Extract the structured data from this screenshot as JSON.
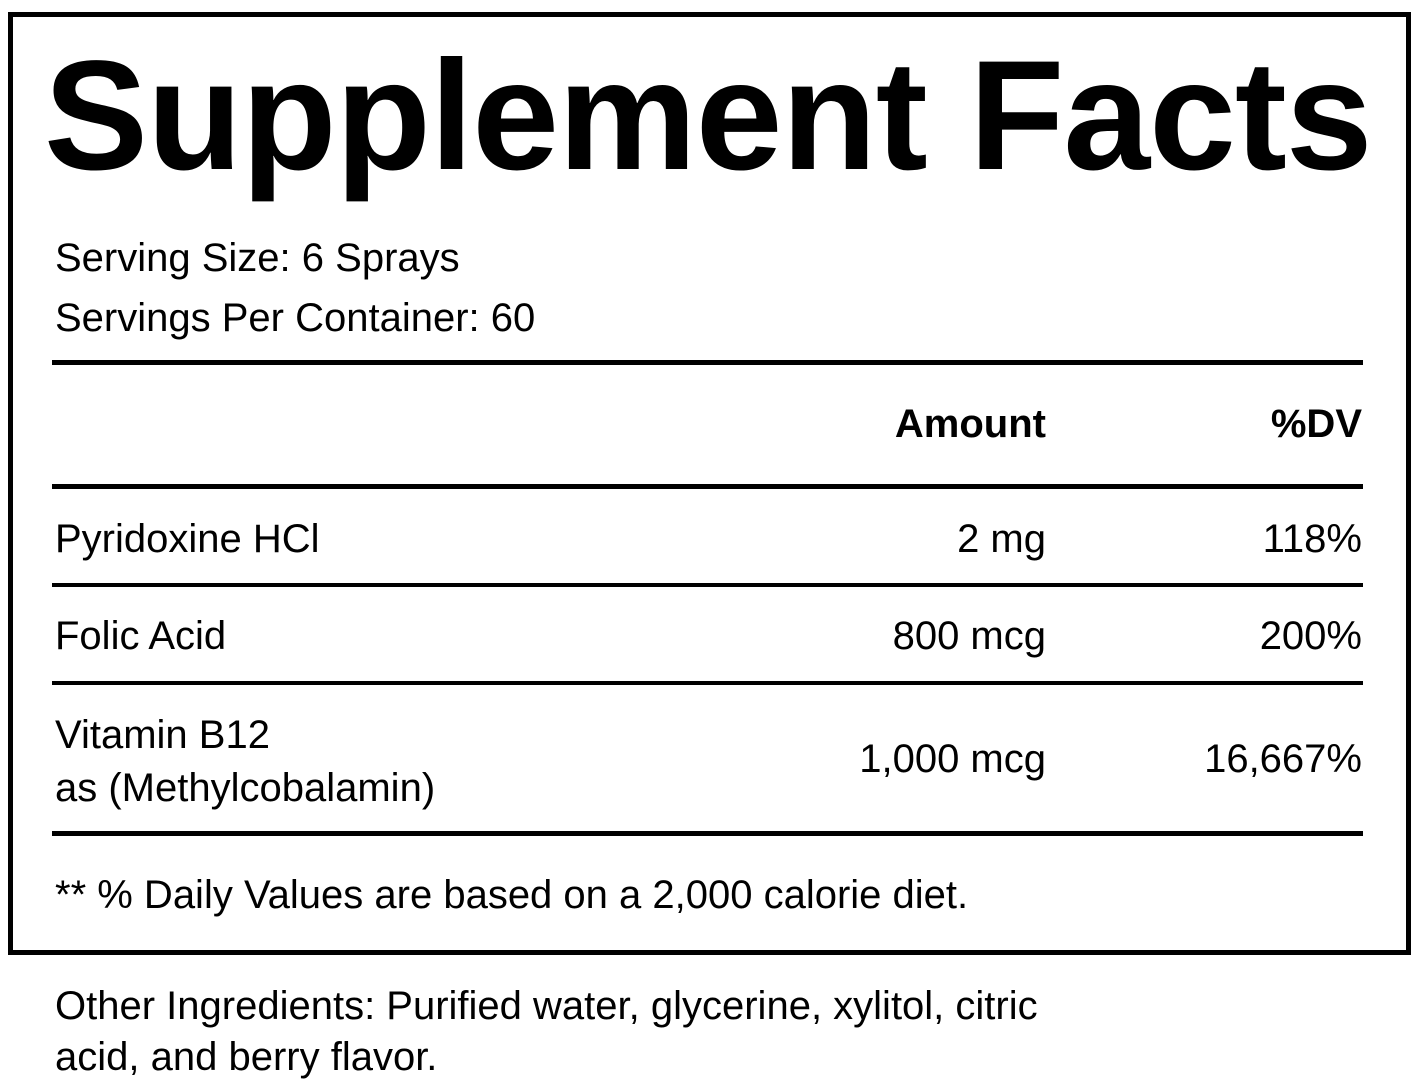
{
  "title": "Supplement Facts",
  "serving_size": "Serving Size: 6 Sprays",
  "servings_per_container": "Servings Per Container: 60",
  "headers": {
    "amount": "Amount",
    "dv": "%DV"
  },
  "rows": [
    {
      "name": "Pyridoxine HCl",
      "name2": "",
      "amount": "2 mg",
      "dv": "118%"
    },
    {
      "name": "Folic Acid",
      "name2": "",
      "amount": "800 mcg",
      "dv": "200%"
    },
    {
      "name": "Vitamin B12",
      "name2": "as (Methylcobalamin)",
      "amount": "1,000 mcg",
      "dv": "16,667%"
    }
  ],
  "footnote": "** % Daily Values are based on a 2,000 calorie diet.",
  "other_ingredients_line1": "Other Ingredients: Purified water, glycerine, xylitol, citric",
  "other_ingredients_line2": "acid, and berry flavor."
}
